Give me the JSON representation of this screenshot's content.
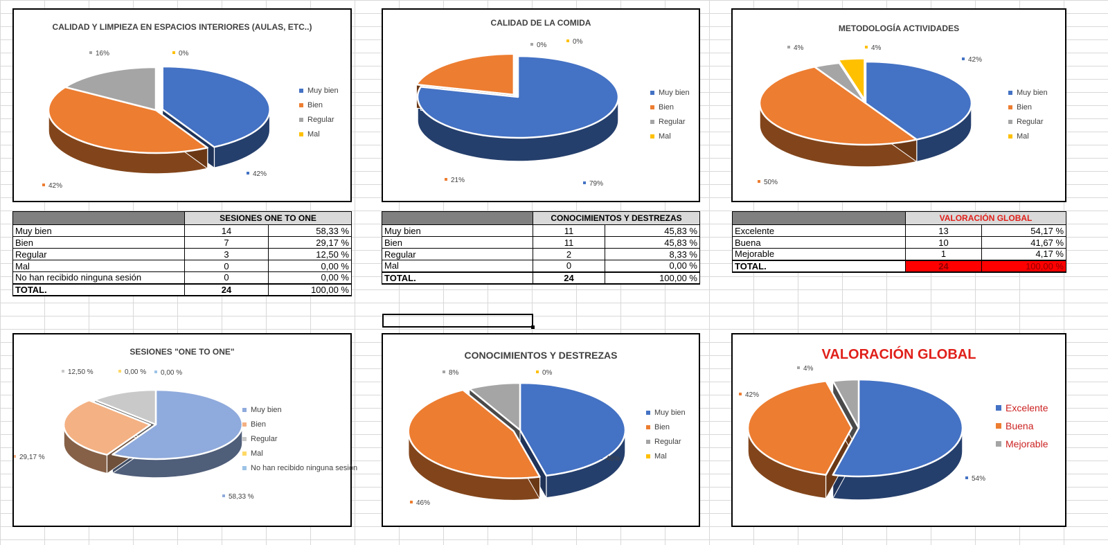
{
  "charts": [
    {
      "title": "CALIDAD Y LIMPIEZA EN ESPACIOS INTERIORES (AULAS, ETC..)",
      "legend": [
        "Muy bien",
        "Bien",
        "Regular",
        "Mal"
      ],
      "slices": [
        {
          "label": "Muy bien",
          "value": 42,
          "pct_text": "42%",
          "color": "#4472c4",
          "exploded": true
        },
        {
          "label": "Bien",
          "value": 42,
          "pct_text": "42%",
          "color": "#ed7d31",
          "exploded": false
        },
        {
          "label": "Regular",
          "value": 16,
          "pct_text": "16%",
          "color": "#a5a5a5",
          "exploded": false
        },
        {
          "label": "Mal",
          "value": 0,
          "pct_text": "0%",
          "color": "#ffc000",
          "exploded": false
        }
      ]
    },
    {
      "title": "CALIDAD DE LA COMIDA",
      "legend": [
        "Muy bien",
        "Bien",
        "Regular",
        "Mal"
      ],
      "slices": [
        {
          "label": "Muy bien",
          "value": 79,
          "pct_text": "79%",
          "color": "#4472c4",
          "exploded": false
        },
        {
          "label": "Bien",
          "value": 21,
          "pct_text": "21%",
          "color": "#ed7d31",
          "exploded": true
        },
        {
          "label": "Regular",
          "value": 0,
          "pct_text": "0%",
          "color": "#a5a5a5",
          "exploded": false
        },
        {
          "label": "Mal",
          "value": 0,
          "pct_text": "0%",
          "color": "#ffc000",
          "exploded": false
        }
      ]
    },
    {
      "title": "METODOLOGÍA ACTIVIDADES",
      "legend": [
        "Muy bien",
        "Bien",
        "Regular",
        "Mal"
      ],
      "slices": [
        {
          "label": "Muy bien",
          "value": 42,
          "pct_text": "42%",
          "color": "#4472c4",
          "exploded": false
        },
        {
          "label": "Bien",
          "value": 50,
          "pct_text": "50%",
          "color": "#ed7d31",
          "exploded": false
        },
        {
          "label": "Regular",
          "value": 4,
          "pct_text": "4%",
          "color": "#a5a5a5",
          "exploded": false
        },
        {
          "label": "Mal",
          "value": 4,
          "pct_text": "4%",
          "color": "#ffc000",
          "exploded": true
        }
      ]
    },
    {
      "title": "SESIONES \"ONE TO ONE\"",
      "legend": [
        "Muy bien",
        "Bien",
        "Regular",
        "Mal",
        "No han recibido ninguna sesión"
      ],
      "slices": [
        {
          "label": "Muy bien",
          "value": 58.33,
          "pct_text": "58,33 %",
          "color": "#8faadc",
          "exploded": false
        },
        {
          "label": "Bien",
          "value": 29.17,
          "pct_text": "29,17 %",
          "color": "#f4b183",
          "exploded": true
        },
        {
          "label": "Regular",
          "value": 12.5,
          "pct_text": "12,50 %",
          "color": "#c9c9c9",
          "exploded": false
        },
        {
          "label": "Mal",
          "value": 0,
          "pct_text": "0,00 %",
          "color": "#ffd966",
          "exploded": false
        },
        {
          "label": "No han recibido ninguna sesión",
          "value": 0,
          "pct_text": "0,00 %",
          "color": "#9dc3e6",
          "exploded": false
        }
      ]
    },
    {
      "title": "CONOCIMIENTOS Y DESTREZAS",
      "legend": [
        "Muy bien",
        "Bien",
        "Regular",
        "Mal"
      ],
      "slices": [
        {
          "label": "Muy bien",
          "value": 46,
          "pct_text": "46%",
          "color": "#4472c4",
          "exploded": false
        },
        {
          "label": "Bien",
          "value": 46,
          "pct_text": "46%",
          "color": "#ed7d31",
          "exploded": true
        },
        {
          "label": "Regular",
          "value": 8,
          "pct_text": "8%",
          "color": "#a5a5a5",
          "exploded": false
        },
        {
          "label": "Mal",
          "value": 0,
          "pct_text": "0%",
          "color": "#ffc000",
          "exploded": false
        }
      ]
    },
    {
      "title": "VALORACIÓN GLOBAL",
      "title_color": "#e0201a",
      "legend": [
        "Excelente",
        "Buena",
        "Mejorable"
      ],
      "slices": [
        {
          "label": "Excelente",
          "value": 54,
          "pct_text": "54%",
          "color": "#4472c4",
          "exploded": false
        },
        {
          "label": "Buena",
          "value": 42,
          "pct_text": "42%",
          "color": "#ed7d31",
          "exploded": true
        },
        {
          "label": "Mejorable",
          "value": 4,
          "pct_text": "4%",
          "color": "#a5a5a5",
          "exploded": false
        }
      ]
    }
  ],
  "tables": [
    {
      "title": "SESIONES ONE TO ONE",
      "rows": [
        {
          "label": "Muy bien",
          "count": "14",
          "pct": "58,33 %"
        },
        {
          "label": "Bien",
          "count": "7",
          "pct": "29,17 %"
        },
        {
          "label": "Regular",
          "count": "3",
          "pct": "12,50 %"
        },
        {
          "label": "Mal",
          "count": "0",
          "pct": "0,00 %"
        },
        {
          "label": "No han recibido ninguna sesión",
          "count": "0",
          "pct": "0,00 %"
        }
      ],
      "total": {
        "label": "TOTAL.",
        "count": "24",
        "pct": "100,00 %"
      }
    },
    {
      "title": "CONOCIMIENTOS Y DESTREZAS",
      "rows": [
        {
          "label": "Muy bien",
          "count": "11",
          "pct": "45,83 %"
        },
        {
          "label": "Bien",
          "count": "11",
          "pct": "45,83 %"
        },
        {
          "label": "Regular",
          "count": "2",
          "pct": "8,33 %"
        },
        {
          "label": "Mal",
          "count": "0",
          "pct": "0,00 %"
        }
      ],
      "total": {
        "label": "TOTAL.",
        "count": "24",
        "pct": "100,00 %"
      }
    },
    {
      "title": "VALORACIÓN GLOBAL",
      "rows": [
        {
          "label": "Excelente",
          "count": "13",
          "pct": "54,17 %"
        },
        {
          "label": "Buena",
          "count": "10",
          "pct": "41,67 %"
        },
        {
          "label": "Mejorable",
          "count": "1",
          "pct": "4,17 %"
        }
      ],
      "total": {
        "label": "TOTAL.",
        "count": "24",
        "pct": "100,00 %"
      }
    }
  ],
  "chart_data": [
    {
      "type": "pie",
      "title": "CALIDAD Y LIMPIEZA EN ESPACIOS INTERIORES (AULAS, ETC..)",
      "categories": [
        "Muy bien",
        "Bien",
        "Regular",
        "Mal"
      ],
      "values": [
        42,
        42,
        16,
        0
      ]
    },
    {
      "type": "pie",
      "title": "CALIDAD DE LA COMIDA",
      "categories": [
        "Muy bien",
        "Bien",
        "Regular",
        "Mal"
      ],
      "values": [
        79,
        21,
        0,
        0
      ]
    },
    {
      "type": "pie",
      "title": "METODOLOGÍA ACTIVIDADES",
      "categories": [
        "Muy bien",
        "Bien",
        "Regular",
        "Mal"
      ],
      "values": [
        42,
        50,
        4,
        4
      ]
    },
    {
      "type": "pie",
      "title": "SESIONES \"ONE TO ONE\"",
      "categories": [
        "Muy bien",
        "Bien",
        "Regular",
        "Mal",
        "No han recibido ninguna sesión"
      ],
      "values": [
        58.33,
        29.17,
        12.5,
        0,
        0
      ]
    },
    {
      "type": "pie",
      "title": "CONOCIMIENTOS Y DESTREZAS",
      "categories": [
        "Muy bien",
        "Bien",
        "Regular",
        "Mal"
      ],
      "values": [
        46,
        46,
        8,
        0
      ]
    },
    {
      "type": "pie",
      "title": "VALORACIÓN GLOBAL",
      "categories": [
        "Excelente",
        "Buena",
        "Mejorable"
      ],
      "values": [
        54,
        42,
        4
      ]
    }
  ]
}
